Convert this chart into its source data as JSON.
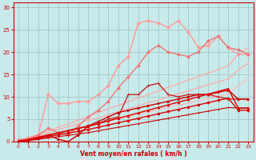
{
  "bg_color": "#c8eaea",
  "grid_color": "#a0c8c8",
  "text_color": "#cc0000",
  "xlabel": "Vent moyen/en rafales ( km/h )",
  "xlim": [
    -0.5,
    23.5
  ],
  "ylim": [
    0,
    31
  ],
  "yticks": [
    0,
    5,
    10,
    15,
    20,
    25,
    30
  ],
  "xticks": [
    0,
    1,
    2,
    3,
    4,
    5,
    6,
    7,
    8,
    9,
    10,
    11,
    12,
    13,
    14,
    15,
    16,
    17,
    18,
    19,
    20,
    21,
    22,
    23
  ],
  "series": [
    {
      "x": [
        0,
        1,
        2,
        3,
        4,
        5,
        6,
        7,
        8,
        9,
        10,
        11,
        12,
        13,
        14,
        15,
        16,
        17,
        18,
        19,
        20,
        21,
        22,
        23
      ],
      "y": [
        0.0,
        0.8,
        1.6,
        2.4,
        3.2,
        4.0,
        4.8,
        5.6,
        6.5,
        7.3,
        8.1,
        8.9,
        9.7,
        10.5,
        11.3,
        12.1,
        12.9,
        13.7,
        14.5,
        15.3,
        16.1,
        16.9,
        19.5,
        21.0
      ],
      "color": "#ffaaaa",
      "linewidth": 0.9,
      "marker": "None",
      "markersize": 0
    },
    {
      "x": [
        0,
        1,
        2,
        3,
        4,
        5,
        6,
        7,
        8,
        9,
        10,
        11,
        12,
        13,
        14,
        15,
        16,
        17,
        18,
        19,
        20,
        21,
        22,
        23
      ],
      "y": [
        0.0,
        0.7,
        1.3,
        2.0,
        2.7,
        3.3,
        4.0,
        4.7,
        5.3,
        6.0,
        6.7,
        7.3,
        8.0,
        8.7,
        9.3,
        10.0,
        10.7,
        11.3,
        12.0,
        12.7,
        13.3,
        14.0,
        16.0,
        17.5
      ],
      "color": "#ffaaaa",
      "linewidth": 0.9,
      "marker": "None",
      "markersize": 0
    },
    {
      "x": [
        0,
        1,
        2,
        3,
        4,
        5,
        6,
        7,
        8,
        9,
        10,
        11,
        12,
        13,
        14,
        15,
        16,
        17,
        18,
        19,
        20,
        21,
        22,
        23
      ],
      "y": [
        0.0,
        0.5,
        1.0,
        1.5,
        2.0,
        2.5,
        3.0,
        3.5,
        4.1,
        4.6,
        5.1,
        5.6,
        6.1,
        6.6,
        7.1,
        7.6,
        8.1,
        8.6,
        9.1,
        9.6,
        10.1,
        10.6,
        12.5,
        14.0
      ],
      "color": "#ffbbbb",
      "linewidth": 0.9,
      "marker": "None",
      "markersize": 0
    },
    {
      "x": [
        0,
        1,
        2,
        3,
        4,
        5,
        6,
        7,
        8,
        9,
        10,
        11,
        12,
        13,
        14,
        15,
        16,
        17,
        18,
        19,
        20,
        21,
        22,
        23
      ],
      "y": [
        0.5,
        0.8,
        1.5,
        10.5,
        8.5,
        8.5,
        9.0,
        9.0,
        10.5,
        12.5,
        17.0,
        19.0,
        26.5,
        27.0,
        26.5,
        25.5,
        27.0,
        24.5,
        21.0,
        21.5,
        23.5,
        21.0,
        19.5,
        19.5
      ],
      "color": "#ff9999",
      "linewidth": 1.0,
      "marker": "D",
      "markersize": 2
    },
    {
      "x": [
        0,
        1,
        2,
        3,
        4,
        5,
        6,
        7,
        8,
        9,
        10,
        11,
        12,
        13,
        14,
        15,
        16,
        17,
        18,
        19,
        20,
        21,
        22,
        23
      ],
      "y": [
        0.0,
        0.5,
        1.5,
        3.0,
        2.0,
        1.5,
        3.5,
        5.5,
        7.0,
        9.0,
        12.0,
        14.5,
        17.0,
        20.0,
        21.5,
        20.0,
        19.5,
        19.0,
        20.0,
        22.5,
        23.5,
        21.0,
        20.5,
        19.5
      ],
      "color": "#ee7777",
      "linewidth": 1.0,
      "marker": "D",
      "markersize": 2
    },
    {
      "x": [
        0,
        1,
        2,
        3,
        4,
        5,
        6,
        7,
        8,
        9,
        10,
        11,
        12,
        13,
        14,
        15,
        16,
        17,
        18,
        19,
        20,
        21,
        22,
        23
      ],
      "y": [
        0.2,
        0.5,
        1.0,
        1.5,
        2.0,
        2.5,
        3.0,
        3.5,
        4.0,
        5.0,
        5.5,
        10.5,
        10.5,
        12.5,
        13.0,
        10.5,
        10.0,
        10.5,
        10.5,
        10.5,
        10.0,
        9.5,
        9.5,
        9.5
      ],
      "color": "#cc2222",
      "linewidth": 1.0,
      "marker": "+",
      "markersize": 3
    },
    {
      "x": [
        0,
        1,
        2,
        3,
        4,
        5,
        6,
        7,
        8,
        9,
        10,
        11,
        12,
        13,
        14,
        15,
        16,
        17,
        18,
        19,
        20,
        21,
        22,
        23
      ],
      "y": [
        0.0,
        0.3,
        0.8,
        1.5,
        0.5,
        0.0,
        1.5,
        3.5,
        4.5,
        5.5,
        6.5,
        7.0,
        7.5,
        8.0,
        8.5,
        9.0,
        9.5,
        10.0,
        10.5,
        10.5,
        11.0,
        11.5,
        9.5,
        9.5
      ],
      "color": "#cc0000",
      "linewidth": 1.0,
      "marker": ">",
      "markersize": 2
    },
    {
      "x": [
        0,
        1,
        2,
        3,
        4,
        5,
        6,
        7,
        8,
        9,
        10,
        11,
        12,
        13,
        14,
        15,
        16,
        17,
        18,
        19,
        20,
        21,
        22,
        23
      ],
      "y": [
        0.0,
        0.4,
        0.9,
        1.4,
        1.9,
        2.4,
        2.9,
        3.4,
        4.0,
        4.6,
        5.2,
        5.8,
        6.4,
        7.0,
        7.6,
        8.2,
        8.8,
        9.4,
        10.0,
        10.6,
        11.2,
        11.8,
        7.5,
        7.5
      ],
      "color": "#dd0000",
      "linewidth": 1.0,
      "marker": "^",
      "markersize": 2
    },
    {
      "x": [
        0,
        1,
        2,
        3,
        4,
        5,
        6,
        7,
        8,
        9,
        10,
        11,
        12,
        13,
        14,
        15,
        16,
        17,
        18,
        19,
        20,
        21,
        22,
        23
      ],
      "y": [
        0.0,
        0.3,
        0.7,
        1.1,
        1.5,
        1.9,
        2.3,
        2.7,
        3.2,
        3.7,
        4.2,
        4.7,
        5.2,
        5.7,
        6.2,
        6.7,
        7.2,
        7.7,
        8.2,
        8.7,
        9.2,
        9.7,
        7.0,
        7.0
      ],
      "color": "#dd0000",
      "linewidth": 1.0,
      "marker": "o",
      "markersize": 2
    },
    {
      "x": [
        0,
        1,
        2,
        3,
        4,
        5,
        6,
        7,
        8,
        9,
        10,
        11,
        12,
        13,
        14,
        15,
        16,
        17,
        18,
        19,
        20,
        21,
        22,
        23
      ],
      "y": [
        0.0,
        0.2,
        0.5,
        0.8,
        1.1,
        1.4,
        1.7,
        2.0,
        2.4,
        2.8,
        3.2,
        3.6,
        4.0,
        4.4,
        4.8,
        5.2,
        5.6,
        6.0,
        6.4,
        6.8,
        7.2,
        7.6,
        7.5,
        7.5
      ],
      "color": "#cc0000",
      "linewidth": 0.8,
      "marker": "+",
      "markersize": 2
    }
  ]
}
